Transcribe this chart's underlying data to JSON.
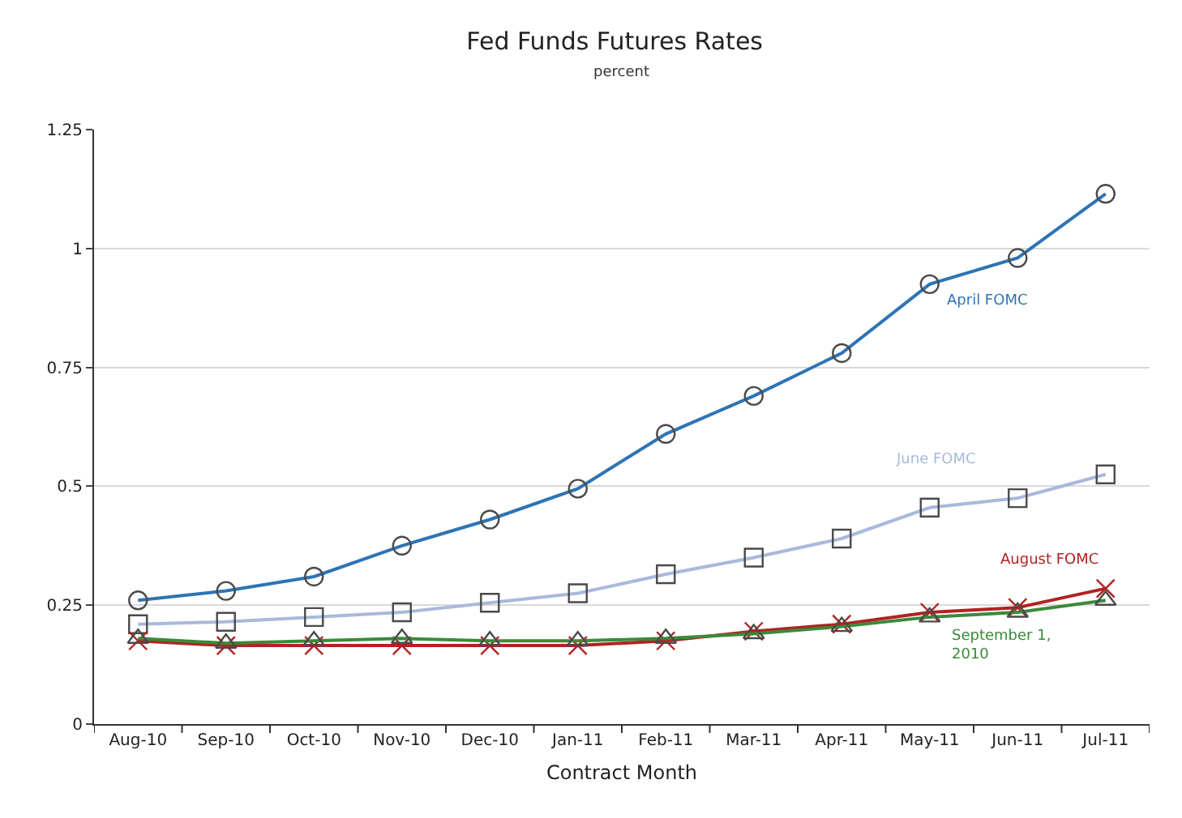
{
  "chart_data": {
    "type": "line",
    "title": "Fed Funds Futures Rates",
    "subtitle": "percent",
    "xlabel": "Contract Month",
    "categories": [
      "Aug-10",
      "Sep-10",
      "Oct-10",
      "Nov-10",
      "Dec-10",
      "Jan-11",
      "Feb-11",
      "Mar-11",
      "Apr-11",
      "May-11",
      "Jun-11",
      "Jul-11"
    ],
    "series": [
      {
        "color": "#2e74b5",
        "marker": "circle",
        "values": [
          0.26,
          0.28,
          0.31,
          0.375,
          0.43,
          0.495,
          0.61,
          0.69,
          0.78,
          0.925,
          0.98,
          1.115
        ]
      },
      {
        "color": "#a9b9dc",
        "marker": "square",
        "values": [
          0.21,
          0.215,
          0.225,
          0.235,
          0.255,
          0.275,
          0.315,
          0.35,
          0.39,
          0.455,
          0.475,
          0.525
        ]
      },
      {
        "color": "#b22222",
        "marker": "cross",
        "values": [
          0.175,
          0.165,
          0.165,
          0.165,
          0.165,
          0.165,
          0.175,
          0.195,
          0.21,
          0.235,
          0.245,
          0.285
        ]
      },
      {
        "color": "#3a8a3a",
        "marker": "triangle",
        "values": [
          0.18,
          0.17,
          0.175,
          0.18,
          0.175,
          0.175,
          0.18,
          0.19,
          0.205,
          0.225,
          0.235,
          0.26
        ]
      }
    ],
    "annotations": [
      "April FOMC",
      "June FOMC",
      "August FOMC",
      "September 1, 2010"
    ],
    "ylim": [
      0,
      1.25
    ],
    "yticks": [
      0,
      0.25,
      0.5,
      0.75,
      1,
      1.25
    ],
    "grid": "y",
    "line_style": "solid"
  }
}
